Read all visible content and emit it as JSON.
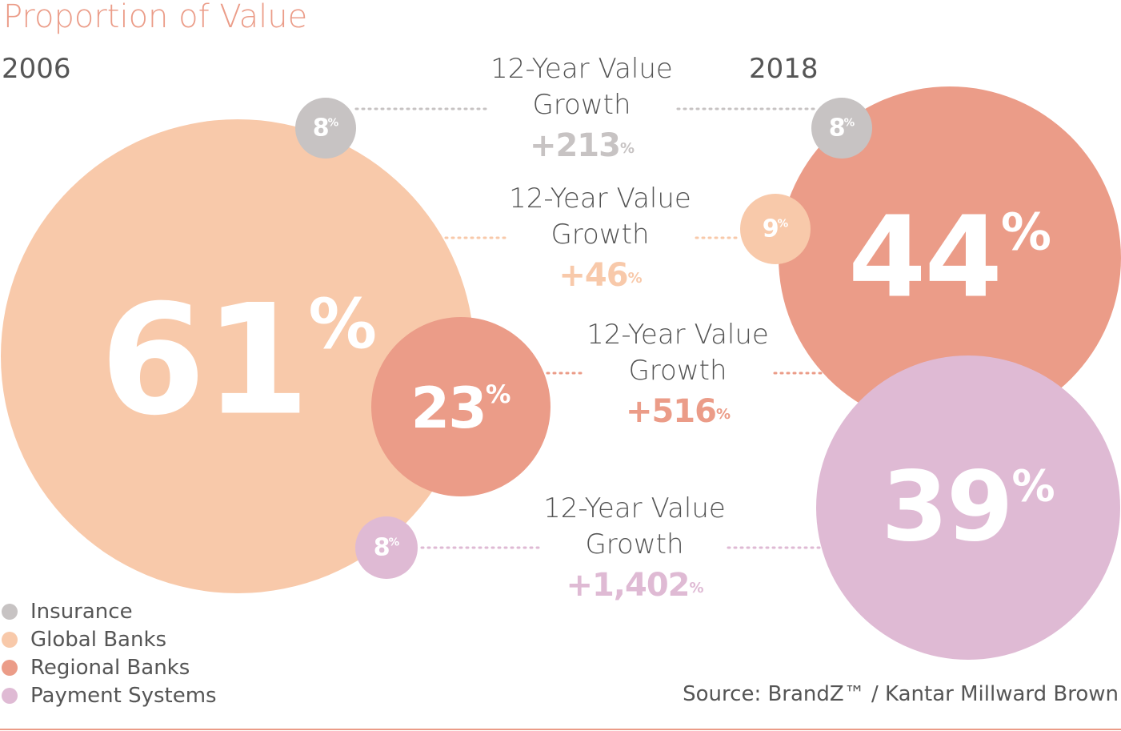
{
  "title": "Proportion of Value",
  "years": {
    "left": "2006",
    "right": "2018"
  },
  "colors": {
    "insurance": "#c7c3c3",
    "global_banks": "#f8c9aa",
    "regional_banks": "#eb9c88",
    "payment_systems": "#dfbad4",
    "title": "#eb9c88"
  },
  "share_2006": {
    "insurance": "8",
    "global_banks": "61",
    "regional_banks": "23",
    "payment_systems": "8"
  },
  "share_2018": {
    "insurance": "8",
    "global_banks": "9",
    "regional_banks": "44",
    "payment_systems": "39"
  },
  "percent_sign": "%",
  "growth": [
    {
      "label_line1": "12-Year Value",
      "label_line2": "Growth",
      "value": "+213",
      "category": "insurance"
    },
    {
      "label_line1": "12-Year Value",
      "label_line2": "Growth",
      "value": "+46",
      "category": "global_banks"
    },
    {
      "label_line1": "12-Year Value",
      "label_line2": "Growth",
      "value": "+516",
      "category": "regional_banks"
    },
    {
      "label_line1": "12-Year Value",
      "label_line2": "Growth",
      "value": "+1,402",
      "category": "payment_systems"
    }
  ],
  "legend": [
    {
      "label": "Insurance",
      "color": "#c7c3c3"
    },
    {
      "label": "Global Banks",
      "color": "#f8c9aa"
    },
    {
      "label": "Regional Banks",
      "color": "#eb9c88"
    },
    {
      "label": "Payment Systems",
      "color": "#dfbad4"
    }
  ],
  "source": "Source: BrandZ™ / Kantar Millward Brown"
}
